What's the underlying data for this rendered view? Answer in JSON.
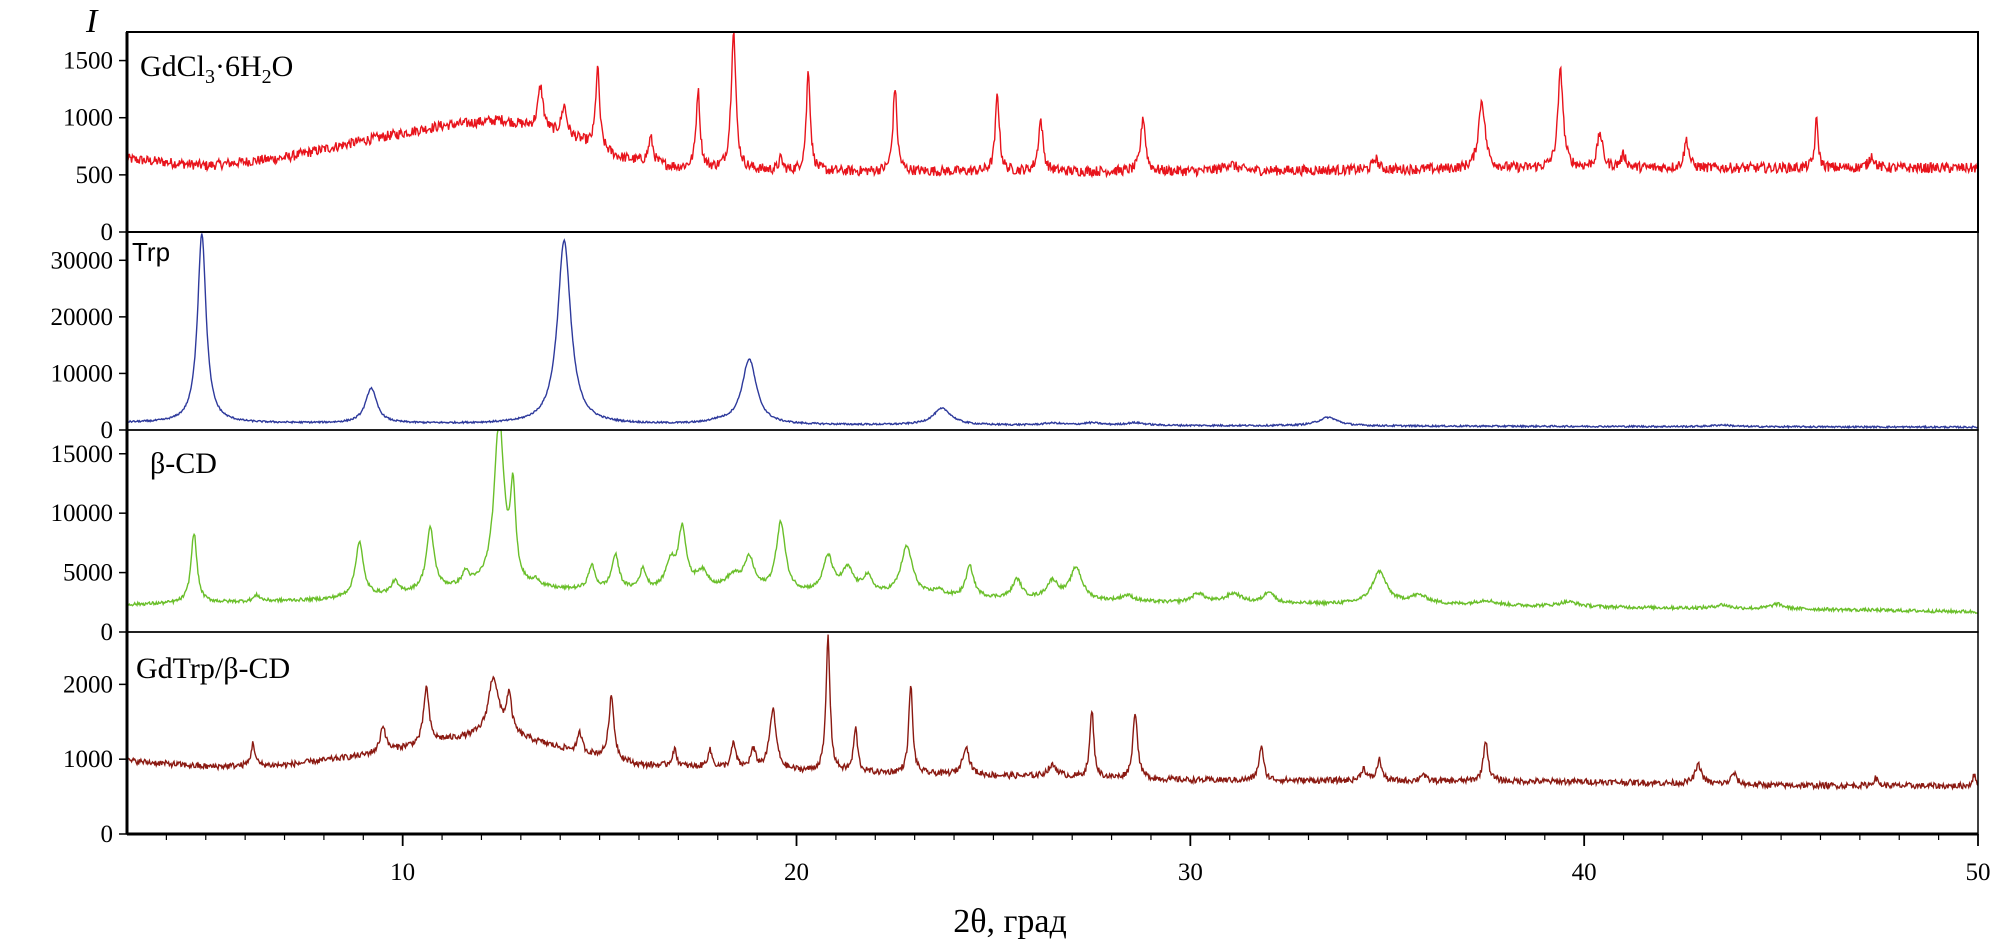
{
  "chart_data": {
    "type": "line",
    "xlabel": "2θ, град",
    "ylabel": "I",
    "xlim": [
      3,
      50
    ],
    "x_ticks": [
      10,
      20,
      30,
      40,
      50
    ],
    "grid": false,
    "panels": [
      {
        "label_main": "GdCl",
        "label_sub1": "3",
        "label_mid": "·6H",
        "label_sub2": "2",
        "label_end": "O",
        "color": "#e8141c",
        "ylim": [
          0,
          1750
        ],
        "y_ticks": [
          0,
          500,
          1000,
          1500
        ],
        "y_tick_labels": [
          "0",
          "500",
          "1000",
          "1500"
        ],
        "baseline": [
          [
            3,
            640
          ],
          [
            5,
            580
          ],
          [
            7,
            650
          ],
          [
            9,
            800
          ],
          [
            11,
            930
          ],
          [
            12.5,
            980
          ],
          [
            13.5,
            900
          ],
          [
            14.5,
            800
          ],
          [
            15.5,
            650
          ],
          [
            17,
            560
          ],
          [
            20,
            530
          ],
          [
            30,
            530
          ],
          [
            40,
            560
          ],
          [
            50,
            560
          ]
        ],
        "peaks": [
          [
            13.5,
            370,
            0.08
          ],
          [
            14.1,
            260,
            0.08
          ],
          [
            14.95,
            700,
            0.06
          ],
          [
            16.3,
            220,
            0.07
          ],
          [
            17.5,
            680,
            0.06
          ],
          [
            18.4,
            1220,
            0.07
          ],
          [
            19.6,
            100,
            0.06
          ],
          [
            20.3,
            880,
            0.06
          ],
          [
            22.5,
            740,
            0.06
          ],
          [
            25.1,
            680,
            0.06
          ],
          [
            26.2,
            450,
            0.07
          ],
          [
            28.8,
            480,
            0.07
          ],
          [
            31,
            60,
            0.2
          ],
          [
            34.7,
            100,
            0.08
          ],
          [
            37.4,
            600,
            0.1
          ],
          [
            39.4,
            850,
            0.08
          ],
          [
            40.4,
            300,
            0.08
          ],
          [
            41,
            110,
            0.08
          ],
          [
            42.6,
            250,
            0.07
          ],
          [
            45.9,
            420,
            0.05
          ],
          [
            47.3,
            110,
            0.08
          ]
        ],
        "noise": 45
      },
      {
        "label_text": "Trp",
        "color": "#2e3a9c",
        "ylim": [
          0,
          35000
        ],
        "y_ticks": [
          0,
          10000,
          20000,
          30000
        ],
        "y_tick_labels": [
          "0",
          "10000",
          "20000",
          "30000"
        ],
        "baseline": [
          [
            3,
            1300
          ],
          [
            20,
            900
          ],
          [
            50,
            500
          ]
        ],
        "peaks": [
          [
            4.9,
            33500,
            0.13
          ],
          [
            9.2,
            6200,
            0.17
          ],
          [
            14.1,
            32500,
            0.2
          ],
          [
            18.0,
            400,
            0.3
          ],
          [
            18.8,
            11500,
            0.22
          ],
          [
            23.7,
            2900,
            0.28
          ],
          [
            26.5,
            350,
            0.3
          ],
          [
            27.5,
            400,
            0.3
          ],
          [
            28.6,
            450,
            0.3
          ],
          [
            33.5,
            1500,
            0.3
          ],
          [
            43.5,
            300,
            0.3
          ]
        ],
        "noise": 150
      },
      {
        "label_text": "β-CD",
        "color": "#6abf2a",
        "ylim": [
          0,
          17000
        ],
        "y_ticks": [
          0,
          5000,
          10000,
          15000
        ],
        "y_tick_labels": [
          "0",
          "5000",
          "10000",
          "15000"
        ],
        "baseline": [
          [
            3,
            2300
          ],
          [
            8,
            2700
          ],
          [
            10,
            3200
          ],
          [
            12,
            3800
          ],
          [
            14,
            3500
          ],
          [
            20,
            3200
          ],
          [
            26,
            2700
          ],
          [
            30,
            2400
          ],
          [
            36,
            2300
          ],
          [
            40,
            2100
          ],
          [
            46,
            1900
          ],
          [
            50,
            1700
          ]
        ],
        "peaks": [
          [
            4.7,
            5900,
            0.09
          ],
          [
            6.3,
            500,
            0.1
          ],
          [
            8.9,
            4600,
            0.12
          ],
          [
            9.8,
            1000,
            0.1
          ],
          [
            10.7,
            5200,
            0.12
          ],
          [
            11.6,
            1100,
            0.1
          ],
          [
            12.45,
            14000,
            0.15
          ],
          [
            12.8,
            7500,
            0.08
          ],
          [
            13.4,
            500,
            0.1
          ],
          [
            14.8,
            2000,
            0.1
          ],
          [
            15.4,
            2900,
            0.11
          ],
          [
            16.1,
            1700,
            0.1
          ],
          [
            16.8,
            2200,
            0.15
          ],
          [
            17.1,
            5000,
            0.12
          ],
          [
            17.6,
            1500,
            0.2
          ],
          [
            18.4,
            1200,
            0.25
          ],
          [
            18.8,
            2600,
            0.15
          ],
          [
            19.6,
            5800,
            0.14
          ],
          [
            20.8,
            3000,
            0.15
          ],
          [
            21.3,
            2000,
            0.18
          ],
          [
            21.8,
            1400,
            0.15
          ],
          [
            22.8,
            4100,
            0.18
          ],
          [
            23.6,
            500,
            0.15
          ],
          [
            24.4,
            2600,
            0.12
          ],
          [
            25.6,
            1600,
            0.14
          ],
          [
            26.5,
            1500,
            0.18
          ],
          [
            27.1,
            2700,
            0.18
          ],
          [
            28.4,
            500,
            0.2
          ],
          [
            30.2,
            800,
            0.2
          ],
          [
            31.1,
            800,
            0.25
          ],
          [
            32.0,
            1000,
            0.15
          ],
          [
            34.8,
            2700,
            0.22
          ],
          [
            35.8,
            700,
            0.3
          ],
          [
            37.5,
            400,
            0.3
          ],
          [
            39.6,
            400,
            0.3
          ],
          [
            43.5,
            300,
            0.2
          ],
          [
            44.9,
            400,
            0.2
          ]
        ],
        "noise": 140
      },
      {
        "label_text": "GdTrp/β-CD",
        "color": "#8b1a12",
        "ylim": [
          0,
          2700
        ],
        "y_ticks": [
          0,
          1000,
          2000
        ],
        "y_tick_labels": [
          "0",
          "1000",
          "2000"
        ],
        "baseline": [
          [
            3,
            980
          ],
          [
            5,
            900
          ],
          [
            7,
            920
          ],
          [
            9,
            1050
          ],
          [
            11,
            1250
          ],
          [
            12.5,
            1350
          ],
          [
            14,
            1150
          ],
          [
            16,
            920
          ],
          [
            20,
            840
          ],
          [
            25,
            780
          ],
          [
            30,
            720
          ],
          [
            40,
            700
          ],
          [
            45,
            650
          ],
          [
            50,
            640
          ]
        ],
        "peaks": [
          [
            6.2,
            300,
            0.06
          ],
          [
            9.5,
            350,
            0.08
          ],
          [
            10.6,
            750,
            0.08
          ],
          [
            12.3,
            750,
            0.15
          ],
          [
            12.7,
            500,
            0.08
          ],
          [
            14.5,
            250,
            0.07
          ],
          [
            15.3,
            830,
            0.08
          ],
          [
            16.9,
            220,
            0.07
          ],
          [
            17.8,
            230,
            0.07
          ],
          [
            18.4,
            330,
            0.07
          ],
          [
            18.9,
            250,
            0.08
          ],
          [
            19.4,
            800,
            0.1
          ],
          [
            20.8,
            1800,
            0.06
          ],
          [
            21.5,
            580,
            0.06
          ],
          [
            22.9,
            1180,
            0.06
          ],
          [
            24.3,
            380,
            0.1
          ],
          [
            26.5,
            150,
            0.15
          ],
          [
            27.5,
            900,
            0.06
          ],
          [
            28.6,
            900,
            0.07
          ],
          [
            31.8,
            450,
            0.07
          ],
          [
            34.4,
            160,
            0.08
          ],
          [
            34.8,
            280,
            0.07
          ],
          [
            35.9,
            100,
            0.07
          ],
          [
            37.5,
            550,
            0.07
          ],
          [
            42.9,
            250,
            0.1
          ],
          [
            43.8,
            150,
            0.08
          ],
          [
            47.4,
            100,
            0.07
          ],
          [
            49.9,
            150,
            0.05
          ]
        ],
        "noise": 40
      }
    ]
  }
}
